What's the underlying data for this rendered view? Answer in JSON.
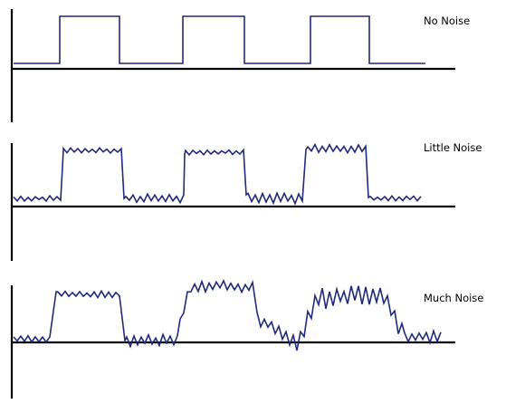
{
  "colors": {
    "signal": "#1f2a7a",
    "axis": "#000000",
    "background": "#ffffff"
  },
  "panels": [
    {
      "id": "no-noise",
      "label": "No Noise",
      "noise": "none"
    },
    {
      "id": "little-noise",
      "label": "Little Noise",
      "noise": "little"
    },
    {
      "id": "much-noise",
      "label": "Much Noise",
      "noise": "much"
    }
  ]
}
